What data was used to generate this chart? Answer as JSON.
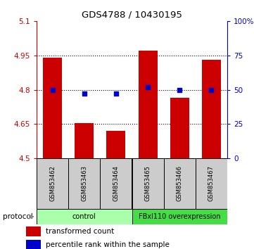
{
  "title": "GDS4788 / 10430195",
  "categories": [
    "GSM853462",
    "GSM853463",
    "GSM853464",
    "GSM853465",
    "GSM853466",
    "GSM853467"
  ],
  "bar_values": [
    4.94,
    4.655,
    4.62,
    4.97,
    4.765,
    4.93
  ],
  "bar_base": 4.5,
  "bar_color": "#cc0000",
  "dot_values_pct": [
    50,
    47,
    47,
    52,
    50,
    50
  ],
  "dot_color": "#0000cc",
  "left_ylim": [
    4.5,
    5.1
  ],
  "left_yticks": [
    4.5,
    4.65,
    4.8,
    4.95,
    5.1
  ],
  "right_ylim": [
    0,
    100
  ],
  "right_yticks": [
    0,
    25,
    50,
    75,
    100
  ],
  "right_yticklabels": [
    "0",
    "25",
    "50",
    "75",
    "100%"
  ],
  "hlines": [
    4.65,
    4.8,
    4.95
  ],
  "protocol_groups": [
    {
      "label": "control",
      "indices": [
        0,
        1,
        2
      ],
      "color": "#aaffaa"
    },
    {
      "label": "FBxl110 overexpression",
      "indices": [
        3,
        4,
        5
      ],
      "color": "#44dd44"
    }
  ],
  "legend_bar_label": "transformed count",
  "legend_dot_label": "percentile rank within the sample",
  "left_axis_color": "#cc0000",
  "right_axis_color": "#0000cc",
  "bg_color": "#ffffff",
  "sample_box_color": "#cccccc",
  "protocol_label": "protocol",
  "protocol_arrow_color": "#888888"
}
